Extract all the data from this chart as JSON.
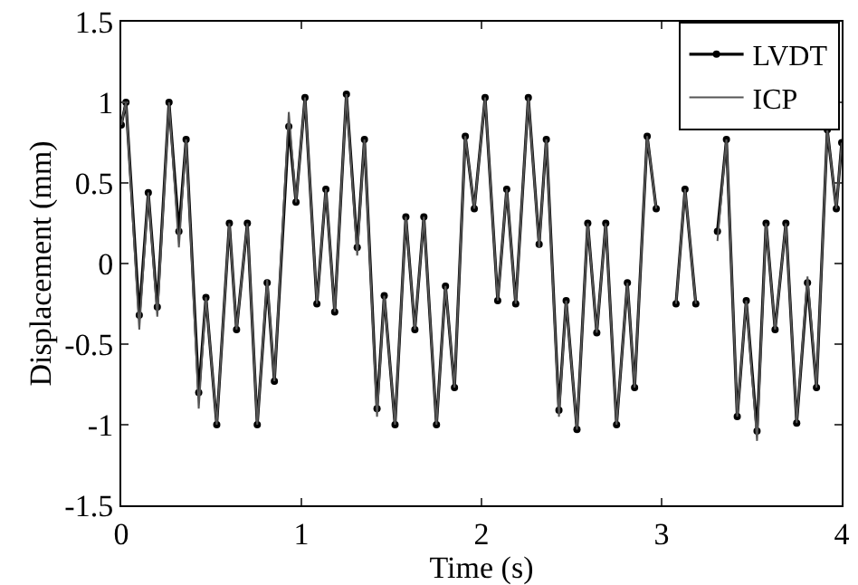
{
  "chart_data": {
    "type": "line",
    "xlabel": "Time (s)",
    "ylabel": "Displacement (mm)",
    "x": [
      0,
      0.026,
      0.1,
      0.15,
      0.2,
      0.265,
      0.32,
      0.36,
      0.43,
      0.47,
      0.53,
      0.6,
      0.64,
      0.7,
      0.755,
      0.81,
      0.85,
      0.93,
      0.97,
      1.02,
      1.086,
      1.136,
      1.185,
      1.25,
      1.31,
      1.35,
      1.42,
      1.46,
      1.52,
      1.58,
      1.63,
      1.68,
      1.75,
      1.8,
      1.85,
      1.91,
      1.96,
      2.02,
      2.09,
      2.14,
      2.19,
      2.26,
      2.32,
      2.36,
      2.43,
      2.47,
      2.53,
      2.59,
      2.64,
      2.69,
      2.75,
      2.81,
      2.85,
      2.92,
      2.97,
      3.02,
      3.08,
      3.13,
      3.19,
      3.26,
      3.31,
      3.36,
      3.42,
      3.47,
      3.53,
      3.58,
      3.63,
      3.69,
      3.75,
      3.81,
      3.86,
      3.92,
      3.97,
      4
    ],
    "series": [
      {
        "name": "LVDT",
        "color": "#000000",
        "marker": "circle",
        "values": [
          0.86,
          1.0,
          -0.32,
          0.44,
          -0.27,
          1.0,
          0.2,
          0.77,
          -0.8,
          -0.21,
          -1.0,
          0.25,
          -0.41,
          0.25,
          -1.0,
          -0.12,
          -0.73,
          0.85,
          0.38,
          1.03,
          -0.25,
          0.46,
          -0.3,
          1.05,
          0.1,
          0.77,
          -0.9,
          -0.2,
          -1.0,
          0.29,
          -0.41,
          0.29,
          -1.0,
          -0.14,
          -0.77,
          0.79,
          0.34,
          1.03,
          -0.23,
          0.46,
          -0.25,
          1.03,
          0.12,
          0.77,
          -0.91,
          -0.23,
          -1.03,
          0.25,
          -0.43,
          0.25,
          -1.0,
          -0.12,
          -0.77,
          0.79,
          0.34,
          null,
          -0.25,
          0.46,
          -0.25,
          null,
          0.2,
          0.77,
          -0.95,
          -0.23,
          -1.04,
          0.25,
          -0.41,
          0.25,
          -0.99,
          -0.12,
          -0.77,
          0.83,
          0.34,
          0.75
        ]
      },
      {
        "name": "ICP",
        "color": "#555555",
        "marker": "none",
        "values": [
          0.86,
          1.0,
          -0.41,
          0.44,
          -0.33,
          1.0,
          0.1,
          0.77,
          -0.9,
          -0.21,
          -1.0,
          0.25,
          -0.41,
          0.25,
          -1.0,
          -0.1,
          -0.73,
          0.94,
          0.38,
          1.03,
          -0.25,
          0.46,
          -0.3,
          1.05,
          0.05,
          0.77,
          -0.95,
          -0.2,
          -1.0,
          0.29,
          -0.41,
          0.29,
          -1.0,
          -0.14,
          -0.77,
          0.79,
          0.34,
          1.03,
          -0.23,
          0.46,
          -0.25,
          1.03,
          0.1,
          0.77,
          -0.95,
          -0.23,
          -1.03,
          0.25,
          -0.43,
          0.25,
          -1.0,
          -0.12,
          -0.77,
          0.79,
          0.34,
          null,
          -0.25,
          0.46,
          -0.25,
          null,
          0.14,
          0.77,
          -0.95,
          -0.23,
          -1.1,
          0.25,
          -0.41,
          0.25,
          -0.99,
          -0.08,
          -0.77,
          0.83,
          0.34,
          0.75
        ]
      }
    ],
    "xlim": [
      0,
      4
    ],
    "xticks": [
      0,
      1,
      2,
      3,
      4
    ],
    "ylim": [
      -1.5,
      1.5
    ],
    "yticks": [
      -1.5,
      -1,
      -0.5,
      0,
      0.5,
      1,
      1.5
    ],
    "grid": false,
    "legend": "top right",
    "line_style": "solid"
  }
}
